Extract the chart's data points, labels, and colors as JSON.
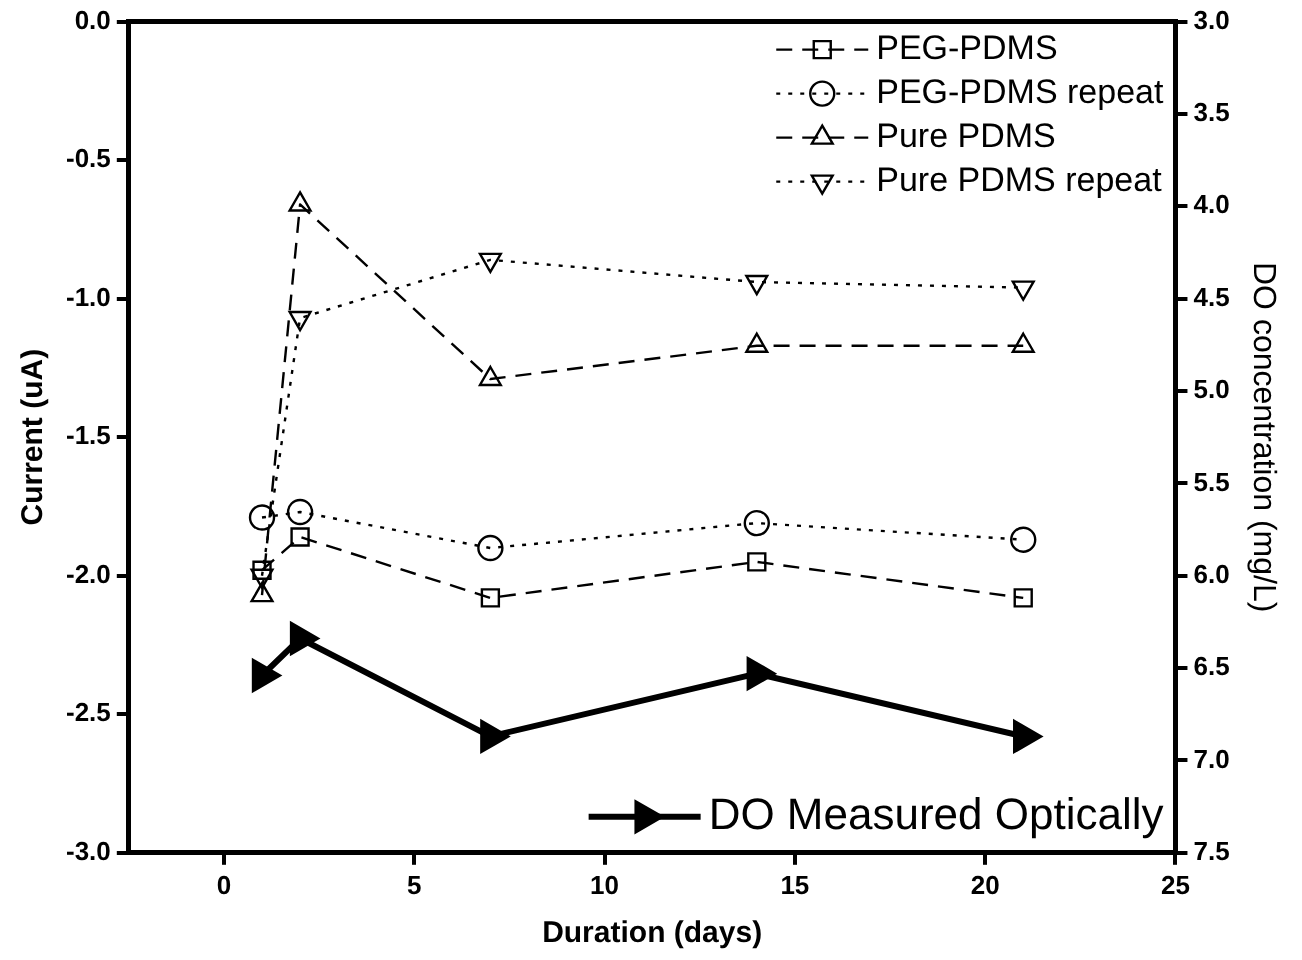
{
  "chart_data": {
    "type": "line",
    "xlabel": "Duration (days)",
    "ylabel": "Current (uA)",
    "y2label": "DO concentration (mg/L)",
    "x": [
      1,
      2,
      7,
      14,
      21
    ],
    "series": [
      {
        "name": "PEG-PDMS",
        "color": "#000000",
        "marker": "square",
        "line_style": "dashed",
        "values": [
          -1.98,
          -1.86,
          -2.08,
          -1.95,
          -2.08
        ]
      },
      {
        "name": "PEG-PDMS repeat",
        "color": "#000000",
        "marker": "circle",
        "line_style": "dotted",
        "values": [
          -1.79,
          -1.77,
          -1.9,
          -1.81,
          -1.87
        ]
      },
      {
        "name": "Pure PDMS",
        "color": "#000000",
        "marker": "triangle",
        "line_style": "dashed",
        "values": [
          -2.07,
          -0.66,
          -1.29,
          -1.17,
          -1.17
        ]
      },
      {
        "name": "Pure PDMS repeat",
        "color": "#000000",
        "marker": "triangle",
        "line_style": "dotted",
        "values": [
          -2.0,
          -1.07,
          -0.86,
          -0.94,
          -0.96
        ]
      },
      {
        "name": "DO Measured Optically",
        "color": "#000000",
        "marker": "triangle-right",
        "line_style": "solid",
        "axis": "y2",
        "values": [
          6.54,
          6.34,
          6.87,
          6.53,
          6.87
        ]
      }
    ],
    "xlim": [
      -2.5,
      25
    ],
    "xticks": [
      0,
      5,
      10,
      15,
      20,
      25
    ],
    "ylim": [
      -3,
      0
    ],
    "yticks": [
      {
        "value": -3,
        "label": "-3.0"
      },
      -2.5,
      {
        "value": -2,
        "label": "-2.0"
      },
      -1.5,
      {
        "value": -1,
        "label": "-1.0"
      },
      -0.5,
      {
        "value": 0,
        "label": "0.0"
      }
    ],
    "y2lim": [
      7.5,
      3
    ],
    "y2ticks": [
      {
        "value": 3,
        "label": "3.0"
      },
      3.5,
      {
        "value": 4,
        "label": "4.0"
      },
      4.5,
      {
        "value": 5,
        "label": "5.0"
      },
      5.5,
      {
        "value": 6,
        "label": "6.0"
      },
      6.5,
      {
        "value": 7,
        "label": "7.0"
      },
      7.5
    ],
    "grid": false,
    "legend": "top right"
  }
}
